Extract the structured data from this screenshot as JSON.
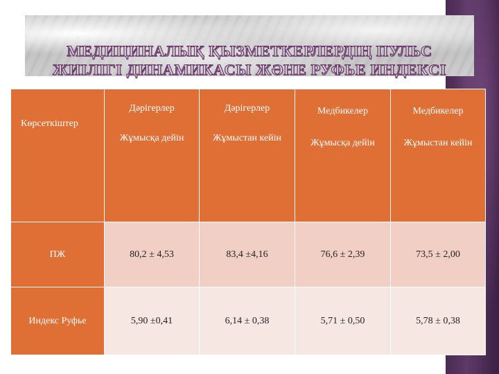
{
  "title": {
    "line1": "МЕДИЦИНАЛЫҚ ҚЫЗМЕТКЕРЛЕРДІҢ ПУЛЬС",
    "line2": "ЖИІЛІГІ ДИНАМИКАСЫ ЖӘНЕ РУФЬЕ ИНДЕКСІ"
  },
  "table": {
    "corner_label": "Көрсеткіштер",
    "columns": [
      {
        "group": "Дәрігерлер",
        "sub": "Жұмысқа дейін"
      },
      {
        "group": "Дәрігерлер",
        "sub": "Жұмыстан кейін"
      },
      {
        "group": "Медбикелер",
        "sub": "Жұмысқа дейін"
      },
      {
        "group": "Медбикелер",
        "sub": "Жұмыстан кейін"
      }
    ],
    "rows": [
      {
        "label": "ПЖ",
        "values": [
          "80,2 ± 4,53",
          "83,4 ±4,16",
          "76,6 ± 2,39",
          "73,5 ± 2,00"
        ]
      },
      {
        "label": "Индекс Руфье",
        "values": [
          "5,90 ±0,41",
          "6,14 ± 0,38",
          "5,71 ± 0,50",
          "5,78 ± 0,38"
        ]
      }
    ]
  },
  "colors": {
    "header": "#e06f35",
    "row_a": "#f2cfc5",
    "row_b": "#f7e7e2",
    "title_outline": "#6b2f6b",
    "side_bar": "#4a2a52"
  }
}
